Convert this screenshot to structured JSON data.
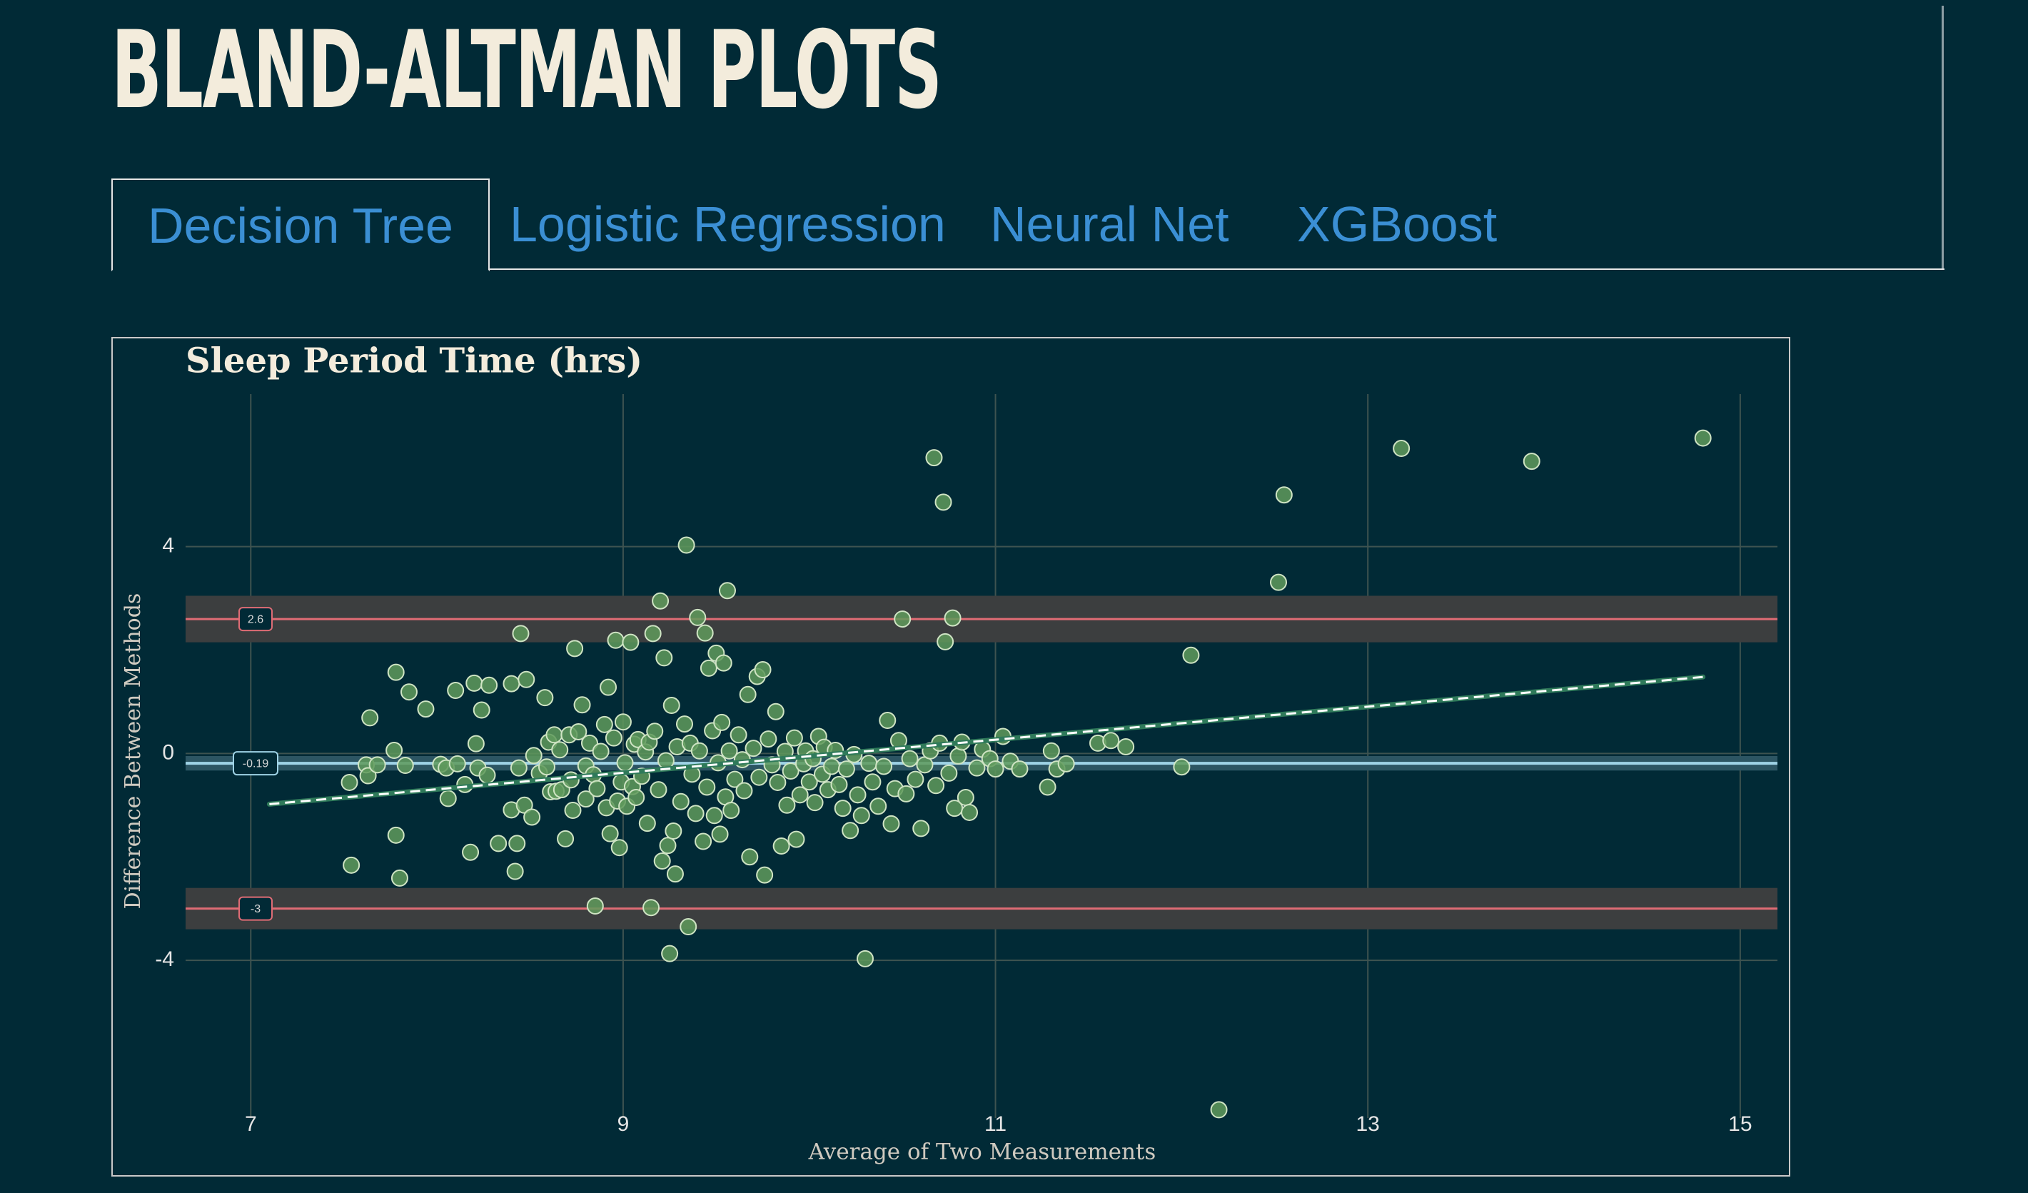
{
  "page": {
    "title": "BLAND-ALTMAN PLOTS"
  },
  "tabs": [
    {
      "label": "Decision Tree",
      "active": true
    },
    {
      "label": "Logistic Regression",
      "active": false
    },
    {
      "label": "Neural Net",
      "active": false
    },
    {
      "label": "XGBoost",
      "active": false
    }
  ],
  "colors": {
    "background": "#012a36",
    "title": "#f3ecdc",
    "tab_text": "#3b8fd4",
    "points": "#5f9a5c",
    "limit_lines": "#e06c75",
    "mean_line": "#9fd3e6",
    "trend_line": "#ffffff"
  },
  "chart_data": {
    "type": "scatter",
    "title": "Sleep Period Time (hrs)",
    "xlabel": "Average of Two Measurements",
    "ylabel": "Difference Between Methods",
    "xlim": [
      6.65,
      15.2
    ],
    "ylim": [
      -7.05,
      6.95
    ],
    "xticks": [
      7,
      9,
      11,
      13,
      15
    ],
    "yticks": [
      4,
      0,
      -4
    ],
    "grid": true,
    "legend": "none",
    "reference_lines": {
      "upper_loa": {
        "value": 2.6,
        "label": "2.6",
        "band": [
          2.15,
          3.05
        ]
      },
      "mean_bias": {
        "value": -0.19,
        "label": "-0.19",
        "band": [
          -0.33,
          -0.05
        ]
      },
      "lower_loa": {
        "value": -3,
        "label": "-3",
        "band": [
          -3.4,
          -2.6
        ]
      }
    },
    "trend_line": {
      "x": [
        7.1,
        14.8
      ],
      "y": [
        -0.98,
        1.48
      ]
    },
    "points": [
      [
        7.53,
        -0.56
      ],
      [
        7.54,
        -2.16
      ],
      [
        7.62,
        -0.22
      ],
      [
        7.63,
        -0.43
      ],
      [
        7.64,
        0.69
      ],
      [
        7.68,
        -0.22
      ],
      [
        7.77,
        0.06
      ],
      [
        7.78,
        1.57
      ],
      [
        7.78,
        -1.58
      ],
      [
        7.8,
        -2.41
      ],
      [
        7.83,
        -0.23
      ],
      [
        7.85,
        1.19
      ],
      [
        7.94,
        0.86
      ],
      [
        8.02,
        -0.21
      ],
      [
        8.05,
        -0.28
      ],
      [
        8.06,
        -0.87
      ],
      [
        8.1,
        1.22
      ],
      [
        8.11,
        -0.2
      ],
      [
        8.15,
        -0.6
      ],
      [
        8.18,
        -1.91
      ],
      [
        8.2,
        1.36
      ],
      [
        8.21,
        0.19
      ],
      [
        8.22,
        -0.28
      ],
      [
        8.24,
        0.84
      ],
      [
        8.27,
        -0.42
      ],
      [
        8.28,
        1.32
      ],
      [
        8.33,
        -1.74
      ],
      [
        8.4,
        -1.09
      ],
      [
        8.4,
        1.35
      ],
      [
        8.42,
        -2.28
      ],
      [
        8.43,
        -1.74
      ],
      [
        8.44,
        -0.28
      ],
      [
        8.45,
        2.32
      ],
      [
        8.47,
        -1.0
      ],
      [
        8.48,
        1.43
      ],
      [
        8.51,
        -1.23
      ],
      [
        8.52,
        -0.04
      ],
      [
        8.55,
        -0.38
      ],
      [
        8.58,
        1.08
      ],
      [
        8.59,
        -0.26
      ],
      [
        8.6,
        0.22
      ],
      [
        8.61,
        -0.74
      ],
      [
        8.63,
        0.36
      ],
      [
        8.64,
        -0.73
      ],
      [
        8.66,
        0.07
      ],
      [
        8.67,
        -0.7
      ],
      [
        8.69,
        -1.65
      ],
      [
        8.71,
        0.36
      ],
      [
        8.72,
        -0.51
      ],
      [
        8.73,
        -1.1
      ],
      [
        8.74,
        2.03
      ],
      [
        8.76,
        0.42
      ],
      [
        8.78,
        0.94
      ],
      [
        8.8,
        -0.24
      ],
      [
        8.8,
        -0.88
      ],
      [
        8.82,
        0.2
      ],
      [
        8.84,
        -0.41
      ],
      [
        8.85,
        -2.95
      ],
      [
        8.86,
        -0.68
      ],
      [
        8.88,
        0.04
      ],
      [
        8.9,
        0.56
      ],
      [
        8.91,
        -1.05
      ],
      [
        8.92,
        1.28
      ],
      [
        8.93,
        -1.55
      ],
      [
        8.95,
        0.3
      ],
      [
        8.96,
        2.19
      ],
      [
        8.97,
        -0.92
      ],
      [
        8.98,
        -1.82
      ],
      [
        8.99,
        -0.55
      ],
      [
        9.0,
        0.61
      ],
      [
        9.01,
        -0.18
      ],
      [
        9.02,
        -1.02
      ],
      [
        9.04,
        2.15
      ],
      [
        9.05,
        -0.64
      ],
      [
        9.06,
        0.18
      ],
      [
        9.07,
        -0.85
      ],
      [
        9.08,
        0.27
      ],
      [
        9.1,
        -0.44
      ],
      [
        9.12,
        0.03
      ],
      [
        9.13,
        -1.35
      ],
      [
        9.14,
        0.22
      ],
      [
        9.15,
        -2.98
      ],
      [
        9.16,
        2.32
      ],
      [
        9.17,
        0.43
      ],
      [
        9.19,
        -0.7
      ],
      [
        9.2,
        2.95
      ],
      [
        9.21,
        -2.08
      ],
      [
        9.22,
        1.85
      ],
      [
        9.23,
        -0.14
      ],
      [
        9.24,
        -1.78
      ],
      [
        9.25,
        -3.87
      ],
      [
        9.26,
        0.93
      ],
      [
        9.27,
        -1.5
      ],
      [
        9.28,
        -2.33
      ],
      [
        9.29,
        0.13
      ],
      [
        9.31,
        -0.93
      ],
      [
        9.33,
        0.57
      ],
      [
        9.34,
        4.03
      ],
      [
        9.35,
        -3.35
      ],
      [
        9.36,
        0.2
      ],
      [
        9.37,
        -0.4
      ],
      [
        9.39,
        -1.16
      ],
      [
        9.4,
        2.63
      ],
      [
        9.41,
        0.05
      ],
      [
        9.43,
        -1.7
      ],
      [
        9.44,
        2.33
      ],
      [
        9.45,
        -0.65
      ],
      [
        9.46,
        1.65
      ],
      [
        9.48,
        0.44
      ],
      [
        9.49,
        -1.2
      ],
      [
        9.5,
        1.94
      ],
      [
        9.51,
        -0.18
      ],
      [
        9.52,
        -1.56
      ],
      [
        9.53,
        0.6
      ],
      [
        9.54,
        1.75
      ],
      [
        9.55,
        -0.84
      ],
      [
        9.56,
        3.15
      ],
      [
        9.57,
        0.05
      ],
      [
        9.58,
        -1.1
      ],
      [
        9.6,
        -0.5
      ],
      [
        9.62,
        0.36
      ],
      [
        9.64,
        -0.12
      ],
      [
        9.65,
        -0.72
      ],
      [
        9.67,
        1.14
      ],
      [
        9.68,
        -2.0
      ],
      [
        9.7,
        0.1
      ],
      [
        9.72,
        1.49
      ],
      [
        9.73,
        -0.46
      ],
      [
        9.75,
        1.62
      ],
      [
        9.76,
        -2.35
      ],
      [
        9.78,
        0.28
      ],
      [
        9.8,
        -0.22
      ],
      [
        9.82,
        0.81
      ],
      [
        9.83,
        -0.56
      ],
      [
        9.85,
        -1.79
      ],
      [
        9.87,
        0.04
      ],
      [
        9.88,
        -1.0
      ],
      [
        9.9,
        -0.34
      ],
      [
        9.92,
        0.3
      ],
      [
        9.93,
        -1.66
      ],
      [
        9.95,
        -0.8
      ],
      [
        9.97,
        -0.2
      ],
      [
        9.98,
        0.05
      ],
      [
        10.0,
        -0.55
      ],
      [
        10.02,
        -0.1
      ],
      [
        10.03,
        -0.95
      ],
      [
        10.05,
        0.33
      ],
      [
        10.07,
        -0.4
      ],
      [
        10.08,
        0.12
      ],
      [
        10.1,
        -0.7
      ],
      [
        10.12,
        -0.25
      ],
      [
        10.14,
        0.06
      ],
      [
        10.16,
        -0.6
      ],
      [
        10.18,
        -1.06
      ],
      [
        10.2,
        -0.3
      ],
      [
        10.22,
        -1.49
      ],
      [
        10.24,
        -0.02
      ],
      [
        10.26,
        -0.8
      ],
      [
        10.28,
        -1.2
      ],
      [
        10.3,
        -3.97
      ],
      [
        10.32,
        -0.19
      ],
      [
        10.34,
        -0.55
      ],
      [
        10.37,
        -1.02
      ],
      [
        10.4,
        -0.25
      ],
      [
        10.42,
        0.64
      ],
      [
        10.44,
        -1.36
      ],
      [
        10.46,
        -0.68
      ],
      [
        10.48,
        0.25
      ],
      [
        10.5,
        2.6
      ],
      [
        10.52,
        -0.78
      ],
      [
        10.54,
        -0.1
      ],
      [
        10.57,
        -0.5
      ],
      [
        10.6,
        -1.45
      ],
      [
        10.62,
        -0.22
      ],
      [
        10.65,
        0.05
      ],
      [
        10.67,
        5.72
      ],
      [
        10.68,
        -0.62
      ],
      [
        10.7,
        0.2
      ],
      [
        10.72,
        4.86
      ],
      [
        10.73,
        2.16
      ],
      [
        10.75,
        -0.38
      ],
      [
        10.77,
        2.62
      ],
      [
        10.78,
        -1.06
      ],
      [
        10.8,
        -0.05
      ],
      [
        10.82,
        0.22
      ],
      [
        10.84,
        -0.85
      ],
      [
        10.86,
        -1.14
      ],
      [
        10.9,
        -0.28
      ],
      [
        10.93,
        0.08
      ],
      [
        10.97,
        -0.1
      ],
      [
        11.0,
        -0.3
      ],
      [
        11.04,
        0.33
      ],
      [
        11.08,
        -0.15
      ],
      [
        11.13,
        -0.3
      ],
      [
        11.28,
        -0.65
      ],
      [
        11.3,
        0.05
      ],
      [
        11.33,
        -0.3
      ],
      [
        11.38,
        -0.2
      ],
      [
        11.55,
        0.2
      ],
      [
        11.62,
        0.25
      ],
      [
        11.7,
        0.13
      ],
      [
        12.0,
        -0.26
      ],
      [
        12.05,
        1.9
      ],
      [
        12.2,
        -6.89
      ],
      [
        12.52,
        3.31
      ],
      [
        12.55,
        5.0
      ],
      [
        13.18,
        5.9
      ],
      [
        13.88,
        5.65
      ],
      [
        14.8,
        6.1
      ]
    ]
  }
}
